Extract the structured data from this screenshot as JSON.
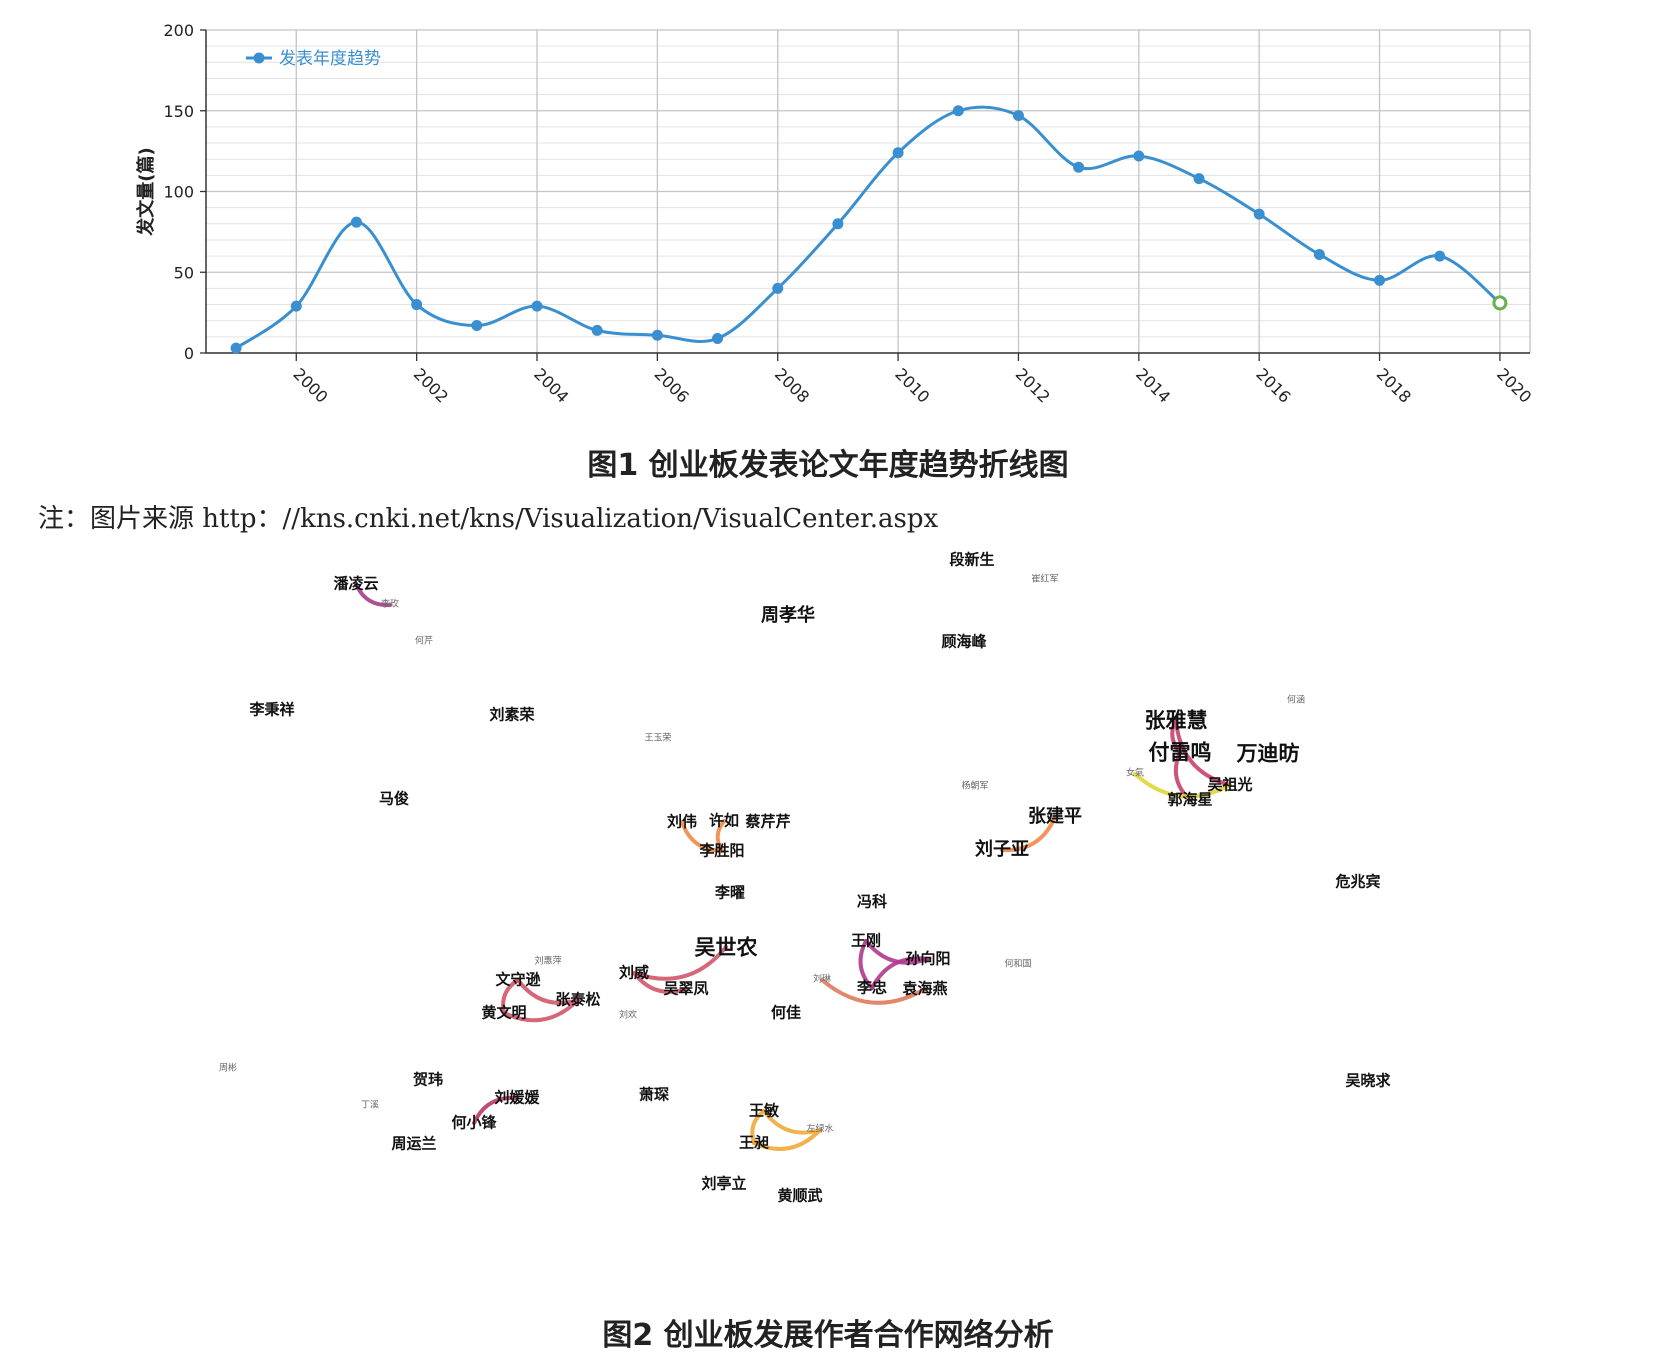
{
  "chart_data": {
    "type": "line",
    "title": "",
    "xlabel": "",
    "ylabel": "发文量(篇)",
    "ylim": [
      0,
      200
    ],
    "y_ticks": [
      "0",
      "50",
      "100",
      "150",
      "200"
    ],
    "x_ticks": [
      "2000",
      "2002",
      "2004",
      "2006",
      "2008",
      "2010",
      "2012",
      "2014",
      "2016",
      "2018",
      "2020"
    ],
    "grid": true,
    "legend_position": "top-left",
    "series": [
      {
        "name": "发表年度趋势",
        "color": "#3a8fd0",
        "x": [
          1999,
          2000,
          2001,
          2002,
          2003,
          2004,
          2005,
          2006,
          2007,
          2008,
          2009,
          2010,
          2011,
          2012,
          2013,
          2014,
          2015,
          2016,
          2017,
          2018,
          2019,
          2020
        ],
        "values": [
          3,
          29,
          81,
          30,
          17,
          29,
          14,
          11,
          9,
          40,
          80,
          124,
          150,
          147,
          115,
          122,
          108,
          86,
          61,
          45,
          60,
          31
        ],
        "last_point_style": "hollow-green"
      }
    ]
  },
  "fig1_caption": "图1  创业板发表论文年度趋势折线图",
  "source_note": "注：图片来源 http：//kns.cnki.net/kns/Visualization/VisualCenter.aspx",
  "fig2_caption": "图2  创业板发展作者合作网络分析",
  "network": {
    "nodes": [
      {
        "label": "潘凌云",
        "size": "m"
      },
      {
        "label": "李玫",
        "size": "s"
      },
      {
        "label": "何芹",
        "size": "s"
      },
      {
        "label": "段新生",
        "size": "m"
      },
      {
        "label": "崔红军",
        "size": "s"
      },
      {
        "label": "周孝华",
        "size": "l"
      },
      {
        "label": "顾海峰",
        "size": "m"
      },
      {
        "label": "何涵",
        "size": "s"
      },
      {
        "label": "李秉祥",
        "size": "m"
      },
      {
        "label": "刘素荣",
        "size": "m"
      },
      {
        "label": "王玉荣",
        "size": "s"
      },
      {
        "label": "张雅慧",
        "size": "xl"
      },
      {
        "label": "付雷鸣",
        "size": "xl"
      },
      {
        "label": "万迪昉",
        "size": "xl"
      },
      {
        "label": "吴祖光",
        "size": "m"
      },
      {
        "label": "郭海星",
        "size": "m"
      },
      {
        "label": "女氣",
        "size": "s"
      },
      {
        "label": "马俊",
        "size": "m"
      },
      {
        "label": "杨朝军",
        "size": "s"
      },
      {
        "label": "张建平",
        "size": "l"
      },
      {
        "label": "刘子亚",
        "size": "l"
      },
      {
        "label": "刘伟",
        "size": "m"
      },
      {
        "label": "许如",
        "size": "m"
      },
      {
        "label": "蔡芹芹",
        "size": "m"
      },
      {
        "label": "李胜阳",
        "size": "m"
      },
      {
        "label": "危兆宾",
        "size": "m"
      },
      {
        "label": "李曜",
        "size": "m"
      },
      {
        "label": "冯科",
        "size": "m"
      },
      {
        "label": "吴世农",
        "size": "xl"
      },
      {
        "label": "王刚",
        "size": "m"
      },
      {
        "label": "孙向阳",
        "size": "m"
      },
      {
        "label": "刘惠萍",
        "size": "s"
      },
      {
        "label": "文守逊",
        "size": "m"
      },
      {
        "label": "刘威",
        "size": "m"
      },
      {
        "label": "吴翠凤",
        "size": "m"
      },
      {
        "label": "何和国",
        "size": "s"
      },
      {
        "label": "刘琳",
        "size": "s"
      },
      {
        "label": "李忠",
        "size": "m"
      },
      {
        "label": "袁海燕",
        "size": "m"
      },
      {
        "label": "张泰松",
        "size": "m"
      },
      {
        "label": "黄文明",
        "size": "m"
      },
      {
        "label": "刘欢",
        "size": "s"
      },
      {
        "label": "何佳",
        "size": "m"
      },
      {
        "label": "周彬",
        "size": "s"
      },
      {
        "label": "贺玮",
        "size": "m"
      },
      {
        "label": "刘媛媛",
        "size": "m"
      },
      {
        "label": "丁溪",
        "size": "s"
      },
      {
        "label": "何小锋",
        "size": "m"
      },
      {
        "label": "周运兰",
        "size": "m"
      },
      {
        "label": "萧琛",
        "size": "m"
      },
      {
        "label": "王敏",
        "size": "m"
      },
      {
        "label": "左绿水",
        "size": "s"
      },
      {
        "label": "王昶",
        "size": "m"
      },
      {
        "label": "吴晓求",
        "size": "m"
      },
      {
        "label": "刘亭立",
        "size": "m"
      },
      {
        "label": "黄顺武",
        "size": "m"
      }
    ],
    "edges": [
      {
        "from": "潘凌云",
        "to": "李玫",
        "color": "#a63d8a"
      },
      {
        "from": "张雅慧",
        "to": "吴祖光",
        "color": "#c9436a"
      },
      {
        "from": "付雷鸣",
        "to": "郭海星",
        "color": "#c9436a"
      },
      {
        "from": "张雅慧",
        "to": "付雷鸣",
        "color": "#c9436a"
      },
      {
        "from": "女氣",
        "to": "吴祖光",
        "color": "#e0d53a"
      },
      {
        "from": "刘伟",
        "to": "李胜阳",
        "color": "#ef8a4a"
      },
      {
        "from": "许如",
        "to": "李胜阳",
        "color": "#ef8a4a"
      },
      {
        "from": "刘子亚",
        "to": "张建平",
        "color": "#ef8a4a"
      },
      {
        "from": "刘威",
        "to": "吴世农",
        "color": "#d2566a"
      },
      {
        "from": "刘威",
        "to": "吴翠凤",
        "color": "#d2566a"
      },
      {
        "from": "王刚",
        "to": "孙向阳",
        "color": "#b03a8c"
      },
      {
        "from": "王刚",
        "to": "李忠",
        "color": "#b03a8c"
      },
      {
        "from": "孙向阳",
        "to": "李忠",
        "color": "#b03a8c"
      },
      {
        "from": "刘琳",
        "to": "袁海燕",
        "color": "#e07a5a"
      },
      {
        "from": "文守逊",
        "to": "黄文明",
        "color": "#d2566a"
      },
      {
        "from": "文守逊",
        "to": "张泰松",
        "color": "#d2566a"
      },
      {
        "from": "黄文明",
        "to": "张泰松",
        "color": "#d2566a"
      },
      {
        "from": "刘媛媛",
        "to": "何小锋",
        "color": "#b83a6a"
      },
      {
        "from": "王敏",
        "to": "王昶",
        "color": "#f2a83a"
      },
      {
        "from": "王昶",
        "to": "左绿水",
        "color": "#f2a83a"
      },
      {
        "from": "王敏",
        "to": "左绿水",
        "color": "#f2a83a"
      }
    ]
  }
}
